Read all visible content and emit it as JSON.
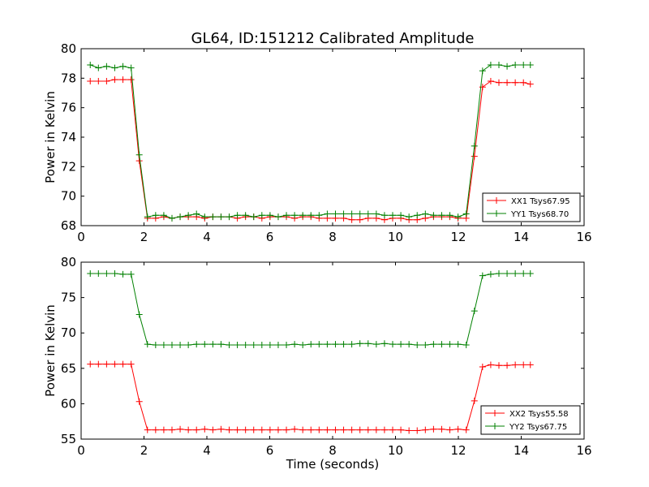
{
  "figure_title": "GL64, ID:151212 Calibrated Amplitude",
  "chart_data": [
    {
      "type": "line",
      "title": "GL64, ID:151212 Calibrated Amplitude",
      "xlabel": "",
      "ylabel": "Power in Kelvin",
      "xlim": [
        0,
        16
      ],
      "ylim": [
        68,
        80
      ],
      "xticks": [
        0,
        2,
        4,
        6,
        8,
        10,
        12,
        14,
        16
      ],
      "yticks": [
        68,
        70,
        72,
        74,
        76,
        78,
        80
      ],
      "grid": false,
      "legend_position": "lower-right",
      "x": [
        0.29,
        0.55,
        0.81,
        1.07,
        1.33,
        1.59,
        1.85,
        2.11,
        2.37,
        2.63,
        2.89,
        3.15,
        3.41,
        3.67,
        3.93,
        4.19,
        4.45,
        4.71,
        4.97,
        5.23,
        5.49,
        5.75,
        6.01,
        6.27,
        6.53,
        6.79,
        7.05,
        7.31,
        7.57,
        7.83,
        8.09,
        8.35,
        8.61,
        8.87,
        9.13,
        9.39,
        9.65,
        9.91,
        10.17,
        10.43,
        10.69,
        10.95,
        11.21,
        11.47,
        11.73,
        11.99,
        12.25,
        12.51,
        12.77,
        13.03,
        13.29,
        13.55,
        13.81,
        14.07,
        14.29
      ],
      "series": [
        {
          "name": "XX1 Tsys67.95",
          "color": "#ff0000",
          "values": [
            77.8,
            77.8,
            77.8,
            77.9,
            77.9,
            77.9,
            72.4,
            68.5,
            68.5,
            68.6,
            68.5,
            68.6,
            68.6,
            68.6,
            68.5,
            68.6,
            68.6,
            68.6,
            68.5,
            68.6,
            68.6,
            68.5,
            68.6,
            68.6,
            68.6,
            68.5,
            68.6,
            68.6,
            68.5,
            68.5,
            68.5,
            68.5,
            68.4,
            68.4,
            68.5,
            68.5,
            68.4,
            68.5,
            68.5,
            68.4,
            68.4,
            68.5,
            68.6,
            68.6,
            68.6,
            68.5,
            68.5,
            72.7,
            77.4,
            77.8,
            77.7,
            77.7,
            77.7,
            77.7,
            77.6
          ]
        },
        {
          "name": "YY1 Tsys68.70",
          "color": "#008000",
          "values": [
            78.9,
            78.7,
            78.8,
            78.7,
            78.8,
            78.7,
            72.8,
            68.6,
            68.7,
            68.7,
            68.5,
            68.6,
            68.7,
            68.8,
            68.6,
            68.6,
            68.6,
            68.6,
            68.7,
            68.7,
            68.6,
            68.7,
            68.7,
            68.6,
            68.7,
            68.7,
            68.7,
            68.7,
            68.7,
            68.8,
            68.8,
            68.8,
            68.8,
            68.8,
            68.8,
            68.8,
            68.7,
            68.7,
            68.7,
            68.6,
            68.7,
            68.8,
            68.7,
            68.7,
            68.7,
            68.6,
            68.8,
            73.4,
            78.5,
            78.9,
            78.9,
            78.8,
            78.9,
            78.9,
            78.9
          ]
        }
      ]
    },
    {
      "type": "line",
      "title": "",
      "xlabel": "Time (seconds)",
      "ylabel": "Power in Kelvin",
      "xlim": [
        0,
        16
      ],
      "ylim": [
        55,
        80
      ],
      "xticks": [
        0,
        2,
        4,
        6,
        8,
        10,
        12,
        14,
        16
      ],
      "yticks": [
        55,
        60,
        65,
        70,
        75,
        80
      ],
      "grid": false,
      "legend_position": "lower-right",
      "x": [
        0.29,
        0.55,
        0.81,
        1.07,
        1.33,
        1.59,
        1.85,
        2.11,
        2.37,
        2.63,
        2.89,
        3.15,
        3.41,
        3.67,
        3.93,
        4.19,
        4.45,
        4.71,
        4.97,
        5.23,
        5.49,
        5.75,
        6.01,
        6.27,
        6.53,
        6.79,
        7.05,
        7.31,
        7.57,
        7.83,
        8.09,
        8.35,
        8.61,
        8.87,
        9.13,
        9.39,
        9.65,
        9.91,
        10.17,
        10.43,
        10.69,
        10.95,
        11.21,
        11.47,
        11.73,
        11.99,
        12.25,
        12.51,
        12.77,
        13.03,
        13.29,
        13.55,
        13.81,
        14.07,
        14.29
      ],
      "series": [
        {
          "name": "XX2 Tsys55.58",
          "color": "#ff0000",
          "values": [
            65.6,
            65.6,
            65.6,
            65.6,
            65.6,
            65.6,
            60.3,
            56.3,
            56.3,
            56.3,
            56.3,
            56.4,
            56.3,
            56.3,
            56.4,
            56.3,
            56.4,
            56.3,
            56.3,
            56.3,
            56.3,
            56.3,
            56.3,
            56.3,
            56.3,
            56.4,
            56.3,
            56.3,
            56.3,
            56.3,
            56.3,
            56.3,
            56.3,
            56.3,
            56.3,
            56.3,
            56.3,
            56.3,
            56.3,
            56.2,
            56.2,
            56.3,
            56.4,
            56.4,
            56.3,
            56.4,
            56.3,
            60.4,
            65.2,
            65.5,
            65.4,
            65.4,
            65.5,
            65.5,
            65.5
          ]
        },
        {
          "name": "YY2 Tsys67.75",
          "color": "#008000",
          "values": [
            78.4,
            78.4,
            78.4,
            78.4,
            78.3,
            78.3,
            72.6,
            68.4,
            68.3,
            68.3,
            68.3,
            68.3,
            68.3,
            68.4,
            68.4,
            68.4,
            68.4,
            68.3,
            68.3,
            68.3,
            68.3,
            68.3,
            68.3,
            68.3,
            68.3,
            68.4,
            68.3,
            68.4,
            68.4,
            68.4,
            68.4,
            68.4,
            68.4,
            68.5,
            68.5,
            68.4,
            68.5,
            68.4,
            68.4,
            68.4,
            68.3,
            68.3,
            68.4,
            68.4,
            68.4,
            68.4,
            68.3,
            73.1,
            78.1,
            78.3,
            78.4,
            78.4,
            78.4,
            78.4,
            78.4
          ]
        }
      ]
    }
  ]
}
